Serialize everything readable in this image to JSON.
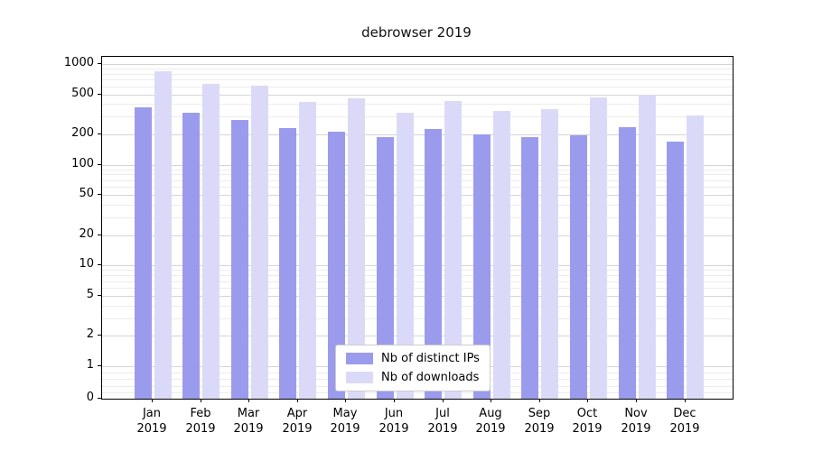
{
  "chart_data": {
    "type": "bar",
    "title": "debrowser 2019",
    "months": [
      "Jan",
      "Feb",
      "Mar",
      "Apr",
      "May",
      "Jun",
      "Jul",
      "Aug",
      "Sep",
      "Oct",
      "Nov",
      "Dec"
    ],
    "year": "2019",
    "yticks": [
      0,
      1,
      2,
      5,
      10,
      20,
      50,
      100,
      200,
      500,
      1000
    ],
    "yscale": "symlog (log above 1, linear 0-1)",
    "ylim": [
      0,
      1100
    ],
    "grid": "both (major and minor horizontal gridlines)",
    "legend_position": "lower center",
    "series": [
      {
        "name": "Nb of distinct IPs",
        "color": "#9b9bee",
        "values": [
          370,
          330,
          280,
          230,
          215,
          190,
          225,
          200,
          190,
          195,
          235,
          170
        ]
      },
      {
        "name": "Nb of downloads",
        "color": "#dadaf8",
        "values": [
          850,
          630,
          610,
          420,
          460,
          330,
          430,
          340,
          355,
          465,
          500,
          310
        ]
      }
    ]
  }
}
